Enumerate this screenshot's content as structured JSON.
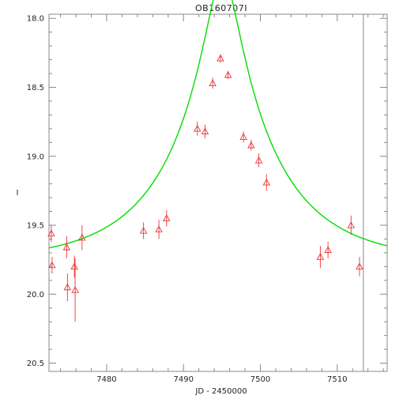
{
  "chart_data": {
    "type": "scatter",
    "title": "OB160707I",
    "xlabel": "JD - 2450000",
    "ylabel": "I",
    "xlim": [
      7472.5,
      7516.5
    ],
    "ylim": [
      20.56,
      17.97
    ],
    "y_inverted": true,
    "x_ticks": [
      7480,
      7490,
      7500,
      7510
    ],
    "y_ticks": [
      18.0,
      18.5,
      19.0,
      19.5,
      20.0,
      20.5
    ],
    "x_tick_labels": [
      "7480",
      "7490",
      "7500",
      "7510"
    ],
    "y_tick_labels": [
      "18.0",
      "18.5",
      "19.0",
      "19.5",
      "20.0",
      "20.5"
    ],
    "vertical_line_x": 7513.4,
    "colors": {
      "points": "#ee3333",
      "model": "#00dd00",
      "axes": "#888888",
      "vline": "#888888"
    },
    "series": [
      {
        "kind": "points_with_errorbars",
        "marker": "triangle-open",
        "x": [
          7472.8,
          7472.9,
          7474.8,
          7474.9,
          7475.8,
          7475.9,
          7476.8,
          7484.8,
          7486.8,
          7487.8,
          7491.8,
          7492.8,
          7493.8,
          7494.8,
          7495.8,
          7497.8,
          7498.8,
          7499.8,
          7500.8,
          7507.8,
          7508.8,
          7511.8,
          7512.9
        ],
        "y": [
          19.56,
          19.79,
          19.66,
          19.95,
          19.8,
          19.97,
          19.59,
          19.54,
          19.53,
          19.45,
          18.8,
          18.82,
          18.47,
          18.29,
          18.41,
          18.86,
          18.92,
          19.03,
          19.19,
          19.73,
          19.68,
          19.5,
          19.8
        ],
        "yerr": [
          0.06,
          0.06,
          0.08,
          0.1,
          0.08,
          0.23,
          0.09,
          0.06,
          0.07,
          0.06,
          0.05,
          0.05,
          0.04,
          0.03,
          0.03,
          0.04,
          0.04,
          0.05,
          0.06,
          0.08,
          0.06,
          0.07,
          0.07
        ]
      },
      {
        "kind": "model_curve",
        "t0": 7495.1,
        "u0": 0.1505,
        "tE": 13.5,
        "baseline_mag": 19.767
      }
    ]
  }
}
